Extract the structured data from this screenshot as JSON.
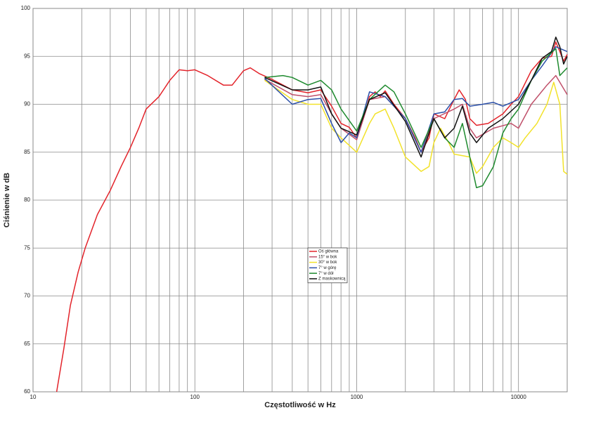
{
  "chart_data": {
    "type": "line",
    "xlabel": "Częstotliwość w Hz",
    "ylabel": "Ciśnienie w dB",
    "xscale": "log",
    "xlim": [
      10,
      20000
    ],
    "ylim": [
      60,
      100
    ],
    "xticks": [
      10,
      100,
      1000,
      10000
    ],
    "xminorticks": [
      20,
      30,
      40,
      50,
      60,
      70,
      80,
      90,
      200,
      300,
      400,
      500,
      600,
      700,
      800,
      900,
      2000,
      3000,
      4000,
      5000,
      6000,
      7000,
      8000,
      9000
    ],
    "yticks": [
      60,
      65,
      70,
      75,
      80,
      85,
      90,
      95,
      100
    ],
    "grid": true,
    "legend": "center",
    "series": [
      {
        "name": "Oś główna",
        "color": "#e3242b",
        "x": [
          14,
          15.5,
          17,
          19,
          21,
          25,
          30,
          35,
          40,
          45,
          50,
          60,
          70,
          80,
          90,
          100,
          120,
          150,
          170,
          200,
          220,
          250,
          300,
          400,
          500,
          600,
          700,
          800,
          900,
          1000,
          1100,
          1200,
          1300,
          1400,
          1500,
          1700,
          2000,
          2300,
          2500,
          2800,
          3000,
          3500,
          4000,
          4300,
          4700,
          5000,
          5500,
          6500,
          8000,
          9000,
          10000,
          12000,
          14000,
          16000,
          17000,
          18000,
          19000,
          20000
        ],
        "values": [
          60,
          64.5,
          69,
          72.5,
          75,
          78.5,
          81,
          83.5,
          85.5,
          87.5,
          89.5,
          90.8,
          92.5,
          93.6,
          93.5,
          93.6,
          93,
          92,
          92,
          93.5,
          93.8,
          93.2,
          92.6,
          91.5,
          91.2,
          91.5,
          89.8,
          88,
          87.6,
          86.5,
          88.5,
          90.8,
          91.3,
          90.8,
          91.4,
          90,
          88.5,
          86.5,
          85,
          86.5,
          89,
          88.5,
          90.5,
          91.5,
          90.5,
          88.5,
          87.8,
          88,
          89,
          90,
          90.8,
          93.5,
          94.8,
          95,
          96.5,
          95.5,
          94.5,
          95.2
        ]
      },
      {
        "name": "15° w bok",
        "color": "#c0506a",
        "x": [
          270,
          400,
          500,
          600,
          700,
          800,
          1000,
          1200,
          1500,
          2000,
          2500,
          3000,
          4000,
          4500,
          5000,
          5500,
          7000,
          9000,
          10000,
          12000,
          15000,
          17000,
          20000
        ],
        "values": [
          92.6,
          91,
          90.8,
          91,
          89,
          87.5,
          86.3,
          90.5,
          90.8,
          88.5,
          85,
          88.5,
          89.5,
          90,
          87.5,
          86.5,
          87.5,
          88,
          87.5,
          90,
          92,
          93,
          91
        ]
      },
      {
        "name": "30° w bok",
        "color": "#f2e22a",
        "x": [
          270,
          400,
          500,
          600,
          700,
          800,
          1000,
          1200,
          1300,
          1500,
          1700,
          2000,
          2500,
          2800,
          3000,
          3300,
          3700,
          4000,
          5000,
          5500,
          6000,
          7000,
          8000,
          9000,
          10000,
          11000,
          13000,
          15000,
          16500,
          18000,
          19000,
          20000
        ],
        "values": [
          92.5,
          90.5,
          90,
          90,
          87.5,
          86.5,
          85,
          88,
          89,
          89.5,
          87.5,
          84.5,
          83,
          83.5,
          86,
          87.5,
          86,
          84.8,
          84.5,
          82.8,
          83.5,
          85.5,
          86.5,
          86,
          85.5,
          86.5,
          88,
          90,
          92.3,
          90,
          83,
          82.7
        ]
      },
      {
        "name": "7° w górę",
        "color": "#2b4fa8",
        "x": [
          270,
          400,
          500,
          600,
          700,
          800,
          900,
          1000,
          1200,
          1500,
          2000,
          2500,
          3000,
          3500,
          4000,
          4500,
          5000,
          6000,
          7000,
          8000,
          10000,
          12000,
          14000,
          17000,
          20000
        ],
        "values": [
          92.7,
          90,
          90.5,
          90.6,
          88,
          86,
          87,
          86.5,
          91.3,
          90.8,
          88.5,
          85,
          89,
          89.2,
          90.5,
          90.6,
          89.8,
          90,
          90.2,
          89.8,
          90.5,
          92.5,
          94,
          96,
          95.5
        ]
      },
      {
        "name": "7° w dół",
        "color": "#1e8a2e",
        "x": [
          270,
          350,
          400,
          500,
          600,
          700,
          800,
          1000,
          1200,
          1500,
          1700,
          2000,
          2500,
          3000,
          3500,
          4000,
          4500,
          5000,
          5500,
          6000,
          7000,
          8000,
          9000,
          10000,
          12000,
          14000,
          17000,
          18000,
          20000
        ],
        "values": [
          92.8,
          93,
          92.8,
          92,
          92.5,
          91.5,
          89.5,
          87.2,
          90.5,
          92,
          91.3,
          89,
          85.5,
          88.5,
          86.5,
          85.5,
          88,
          84.5,
          81.3,
          81.5,
          83.5,
          87,
          88.5,
          89.5,
          92.5,
          94.5,
          95.8,
          93,
          93.8
        ]
      },
      {
        "name": "Z maskownicą",
        "color": "#111111",
        "x": [
          270,
          400,
          500,
          600,
          700,
          800,
          1000,
          1200,
          1500,
          2000,
          2500,
          3000,
          3500,
          4000,
          4500,
          5000,
          5500,
          6500,
          8000,
          10000,
          12000,
          14000,
          16000,
          17000,
          18000,
          19000,
          20000
        ],
        "values": [
          92.8,
          91.5,
          91.5,
          91.8,
          89,
          87.5,
          86.8,
          90.5,
          91.2,
          88.2,
          84.5,
          88.5,
          86.5,
          87.5,
          89.8,
          87,
          86,
          87.5,
          88.5,
          90,
          92.5,
          94.8,
          95.5,
          97,
          96,
          94.2,
          95
        ]
      }
    ]
  }
}
